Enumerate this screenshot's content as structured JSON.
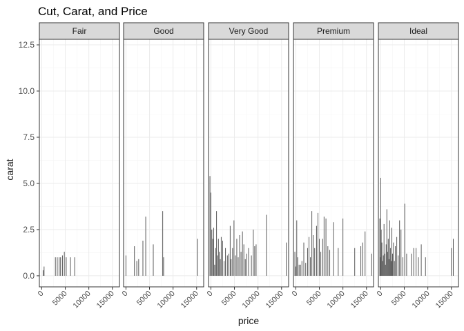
{
  "chart_data": {
    "type": "bar",
    "title": "Cut, Carat, and Price",
    "xlabel": "price",
    "ylabel": "carat",
    "xlim": [
      -500,
      16500
    ],
    "ylim": [
      -0.6,
      12.8
    ],
    "x_ticks": [
      0,
      5000,
      10000,
      15000
    ],
    "x_tick_labels": [
      "0",
      "5000",
      "10000",
      "15000"
    ],
    "y_ticks": [
      0,
      2.5,
      5,
      7.5,
      10,
      12.5
    ],
    "y_tick_labels": [
      "0.0",
      "2.5",
      "5.0",
      "7.5",
      "10.0",
      "12.5"
    ],
    "grid": true,
    "theme_colors": {
      "bar": "#595959",
      "strip_fill": "#d9d9d9",
      "border": "#333333",
      "grid_major": "#ebebeb",
      "grid_minor": "#f5f5f5"
    },
    "facets": [
      {
        "name": "Fair",
        "bars": [
          {
            "x": 300,
            "y": 0.3
          },
          {
            "x": 500,
            "y": 0.5
          },
          {
            "x": 2900,
            "y": 1.0
          },
          {
            "x": 3300,
            "y": 1.0
          },
          {
            "x": 3700,
            "y": 1.0
          },
          {
            "x": 4000,
            "y": 1.0
          },
          {
            "x": 4400,
            "y": 1.1
          },
          {
            "x": 4800,
            "y": 1.3
          },
          {
            "x": 5200,
            "y": 1.0
          },
          {
            "x": 6100,
            "y": 1.0
          },
          {
            "x": 7000,
            "y": 1.0
          }
        ]
      },
      {
        "name": "Good",
        "bars": [
          {
            "x": 0,
            "y": 1.1
          },
          {
            "x": 1800,
            "y": 1.6
          },
          {
            "x": 2300,
            "y": 0.8
          },
          {
            "x": 2700,
            "y": 0.9
          },
          {
            "x": 3600,
            "y": 1.9
          },
          {
            "x": 4200,
            "y": 3.2
          },
          {
            "x": 5800,
            "y": 1.7
          },
          {
            "x": 7800,
            "y": 3.5
          },
          {
            "x": 8000,
            "y": 1.0
          },
          {
            "x": 15200,
            "y": 2.0
          }
        ]
      },
      {
        "name": "Very Good",
        "bars": [
          {
            "x": -200,
            "y": 5.4
          },
          {
            "x": 0,
            "y": 4.5
          },
          {
            "x": 200,
            "y": 2.5
          },
          {
            "x": 400,
            "y": 2.0
          },
          {
            "x": 600,
            "y": 2.6
          },
          {
            "x": 800,
            "y": 0.6
          },
          {
            "x": 1000,
            "y": 1.5
          },
          {
            "x": 1200,
            "y": 3.5
          },
          {
            "x": 1400,
            "y": 1.1
          },
          {
            "x": 1600,
            "y": 2.0
          },
          {
            "x": 1800,
            "y": 1.3
          },
          {
            "x": 2000,
            "y": 0.9
          },
          {
            "x": 2200,
            "y": 2.1
          },
          {
            "x": 2500,
            "y": 1.9
          },
          {
            "x": 2800,
            "y": 0.8
          },
          {
            "x": 3100,
            "y": 1.5
          },
          {
            "x": 3500,
            "y": 1.1
          },
          {
            "x": 3800,
            "y": 1.2
          },
          {
            "x": 4100,
            "y": 2.7
          },
          {
            "x": 4300,
            "y": 0.9
          },
          {
            "x": 4600,
            "y": 1.5
          },
          {
            "x": 4900,
            "y": 3.0
          },
          {
            "x": 5200,
            "y": 1.1
          },
          {
            "x": 5500,
            "y": 2.0
          },
          {
            "x": 5800,
            "y": 1.0
          },
          {
            "x": 6100,
            "y": 2.2
          },
          {
            "x": 6400,
            "y": 1.3
          },
          {
            "x": 6700,
            "y": 2.4
          },
          {
            "x": 7000,
            "y": 1.7
          },
          {
            "x": 7300,
            "y": 0.9
          },
          {
            "x": 7600,
            "y": 1.2
          },
          {
            "x": 8000,
            "y": 1.5
          },
          {
            "x": 8600,
            "y": 1.1
          },
          {
            "x": 9000,
            "y": 2.5
          },
          {
            "x": 9300,
            "y": 1.6
          },
          {
            "x": 9600,
            "y": 1.7
          },
          {
            "x": 11800,
            "y": 3.3
          },
          {
            "x": 16000,
            "y": 1.8
          }
        ]
      },
      {
        "name": "Premium",
        "bars": [
          {
            "x": -200,
            "y": 1.3
          },
          {
            "x": 0,
            "y": 0.5
          },
          {
            "x": 200,
            "y": 3.0
          },
          {
            "x": 400,
            "y": 1.0
          },
          {
            "x": 700,
            "y": 0.6
          },
          {
            "x": 1000,
            "y": 0.6
          },
          {
            "x": 1300,
            "y": 0.8
          },
          {
            "x": 1700,
            "y": 1.8
          },
          {
            "x": 2100,
            "y": 0.7
          },
          {
            "x": 2500,
            "y": 1.5
          },
          {
            "x": 2800,
            "y": 2.1
          },
          {
            "x": 3100,
            "y": 1.0
          },
          {
            "x": 3400,
            "y": 3.5
          },
          {
            "x": 3700,
            "y": 2.2
          },
          {
            "x": 4000,
            "y": 1.5
          },
          {
            "x": 4400,
            "y": 2.7
          },
          {
            "x": 4700,
            "y": 3.4
          },
          {
            "x": 5000,
            "y": 2.0
          },
          {
            "x": 5300,
            "y": 1.3
          },
          {
            "x": 5700,
            "y": 2.0
          },
          {
            "x": 6000,
            "y": 3.2
          },
          {
            "x": 6400,
            "y": 3.1
          },
          {
            "x": 6800,
            "y": 1.6
          },
          {
            "x": 7200,
            "y": 1.4
          },
          {
            "x": 8000,
            "y": 2.9
          },
          {
            "x": 9000,
            "y": 1.5
          },
          {
            "x": 10000,
            "y": 3.1
          },
          {
            "x": 12500,
            "y": 1.5
          },
          {
            "x": 13800,
            "y": 1.6
          },
          {
            "x": 14200,
            "y": 1.8
          },
          {
            "x": 14700,
            "y": 2.4
          },
          {
            "x": 16100,
            "y": 1.2
          }
        ]
      },
      {
        "name": "Ideal",
        "bars": [
          {
            "x": -200,
            "y": 3.1
          },
          {
            "x": -100,
            "y": 1.0
          },
          {
            "x": 0,
            "y": 5.3
          },
          {
            "x": 100,
            "y": 2.5
          },
          {
            "x": 250,
            "y": 1.8
          },
          {
            "x": 400,
            "y": 0.8
          },
          {
            "x": 550,
            "y": 1.1
          },
          {
            "x": 700,
            "y": 2.8
          },
          {
            "x": 850,
            "y": 1.2
          },
          {
            "x": 1000,
            "y": 0.6
          },
          {
            "x": 1150,
            "y": 1.7
          },
          {
            "x": 1300,
            "y": 3.6
          },
          {
            "x": 1450,
            "y": 1.3
          },
          {
            "x": 1600,
            "y": 2.0
          },
          {
            "x": 1750,
            "y": 0.9
          },
          {
            "x": 1900,
            "y": 3.0
          },
          {
            "x": 2050,
            "y": 1.5
          },
          {
            "x": 2200,
            "y": 0.8
          },
          {
            "x": 2350,
            "y": 2.6
          },
          {
            "x": 2500,
            "y": 1.2
          },
          {
            "x": 2700,
            "y": 1.8
          },
          {
            "x": 2900,
            "y": 0.8
          },
          {
            "x": 3100,
            "y": 1.6
          },
          {
            "x": 3400,
            "y": 2.1
          },
          {
            "x": 3700,
            "y": 1.1
          },
          {
            "x": 4000,
            "y": 3.0
          },
          {
            "x": 4300,
            "y": 2.5
          },
          {
            "x": 4700,
            "y": 1.0
          },
          {
            "x": 5100,
            "y": 3.9
          },
          {
            "x": 5500,
            "y": 1.2
          },
          {
            "x": 6500,
            "y": 1.2
          },
          {
            "x": 7000,
            "y": 1.5
          },
          {
            "x": 7500,
            "y": 1.5
          },
          {
            "x": 8000,
            "y": 1.0
          },
          {
            "x": 8600,
            "y": 1.7
          },
          {
            "x": 9500,
            "y": 1.0
          },
          {
            "x": 15000,
            "y": 1.5
          },
          {
            "x": 15400,
            "y": 2.0
          }
        ]
      }
    ]
  }
}
